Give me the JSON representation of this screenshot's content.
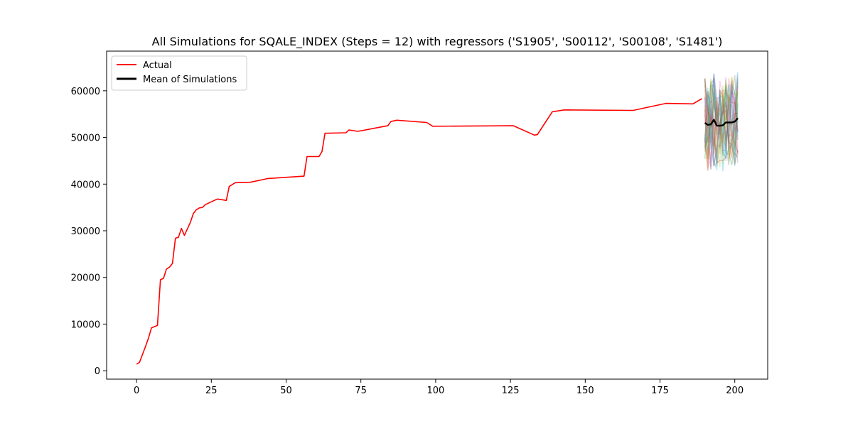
{
  "chart_data": {
    "type": "line",
    "title": "All Simulations for SQALE_INDEX (Steps = 12) with regressors ('S1905', 'S00112', 'S00108', 'S1481')",
    "xlabel": "",
    "ylabel": "",
    "xlim": [
      -10,
      211
    ],
    "ylim": [
      -1800,
      68500
    ],
    "xticks": [
      0,
      25,
      50,
      75,
      100,
      125,
      150,
      175,
      200
    ],
    "yticks": [
      0,
      10000,
      20000,
      30000,
      40000,
      50000,
      60000
    ],
    "grid": false,
    "legend": "top-left",
    "legend_entries": [
      "Actual",
      "Mean of Simulations"
    ],
    "series": [
      {
        "name": "Actual",
        "color": "#ff0000",
        "points": [
          [
            0,
            1400
          ],
          [
            1,
            1800
          ],
          [
            3,
            5200
          ],
          [
            4,
            7000
          ],
          [
            5,
            9200
          ],
          [
            7,
            9700
          ],
          [
            8,
            19500
          ],
          [
            9,
            19800
          ],
          [
            10,
            21800
          ],
          [
            11,
            22200
          ],
          [
            12,
            23000
          ],
          [
            13,
            28400
          ],
          [
            14,
            28600
          ],
          [
            15,
            30500
          ],
          [
            16,
            29000
          ],
          [
            18,
            31800
          ],
          [
            19,
            33700
          ],
          [
            20,
            34500
          ],
          [
            21,
            34900
          ],
          [
            22,
            35000
          ],
          [
            23,
            35600
          ],
          [
            27,
            36800
          ],
          [
            29,
            36600
          ],
          [
            30,
            36500
          ],
          [
            31,
            39500
          ],
          [
            33,
            40300
          ],
          [
            38,
            40400
          ],
          [
            44,
            41200
          ],
          [
            56,
            41700
          ],
          [
            57,
            45900
          ],
          [
            61,
            45900
          ],
          [
            62,
            47000
          ],
          [
            63,
            50900
          ],
          [
            70,
            51000
          ],
          [
            71,
            51600
          ],
          [
            74,
            51300
          ],
          [
            83,
            52400
          ],
          [
            84,
            52500
          ],
          [
            85,
            53400
          ],
          [
            87,
            53700
          ],
          [
            97,
            53200
          ],
          [
            99,
            52400
          ],
          [
            126,
            52500
          ],
          [
            133,
            50500
          ],
          [
            134,
            50600
          ],
          [
            139,
            55500
          ],
          [
            143,
            55900
          ],
          [
            166,
            55800
          ],
          [
            177,
            57300
          ],
          [
            186,
            57200
          ],
          [
            189,
            58300
          ]
        ]
      },
      {
        "name": "Mean of Simulations",
        "color": "#000000",
        "points": [
          [
            190,
            53100
          ],
          [
            191,
            52700
          ],
          [
            192,
            52800
          ],
          [
            193,
            53800
          ],
          [
            194,
            52500
          ],
          [
            195,
            52500
          ],
          [
            196,
            52600
          ],
          [
            197,
            53200
          ],
          [
            198,
            53200
          ],
          [
            199,
            53200
          ],
          [
            200,
            53400
          ],
          [
            201,
            54100
          ]
        ]
      }
    ],
    "simulations": {
      "x_start": 190,
      "x_end": 201,
      "count": 30,
      "y_min": 42000,
      "y_max": 65800,
      "colors": [
        "#1f77b4",
        "#ff7f0e",
        "#2ca02c",
        "#d62728",
        "#9467bd",
        "#8c564b",
        "#e377c2",
        "#7f7f7f",
        "#bcbd22",
        "#17becf"
      ]
    }
  }
}
